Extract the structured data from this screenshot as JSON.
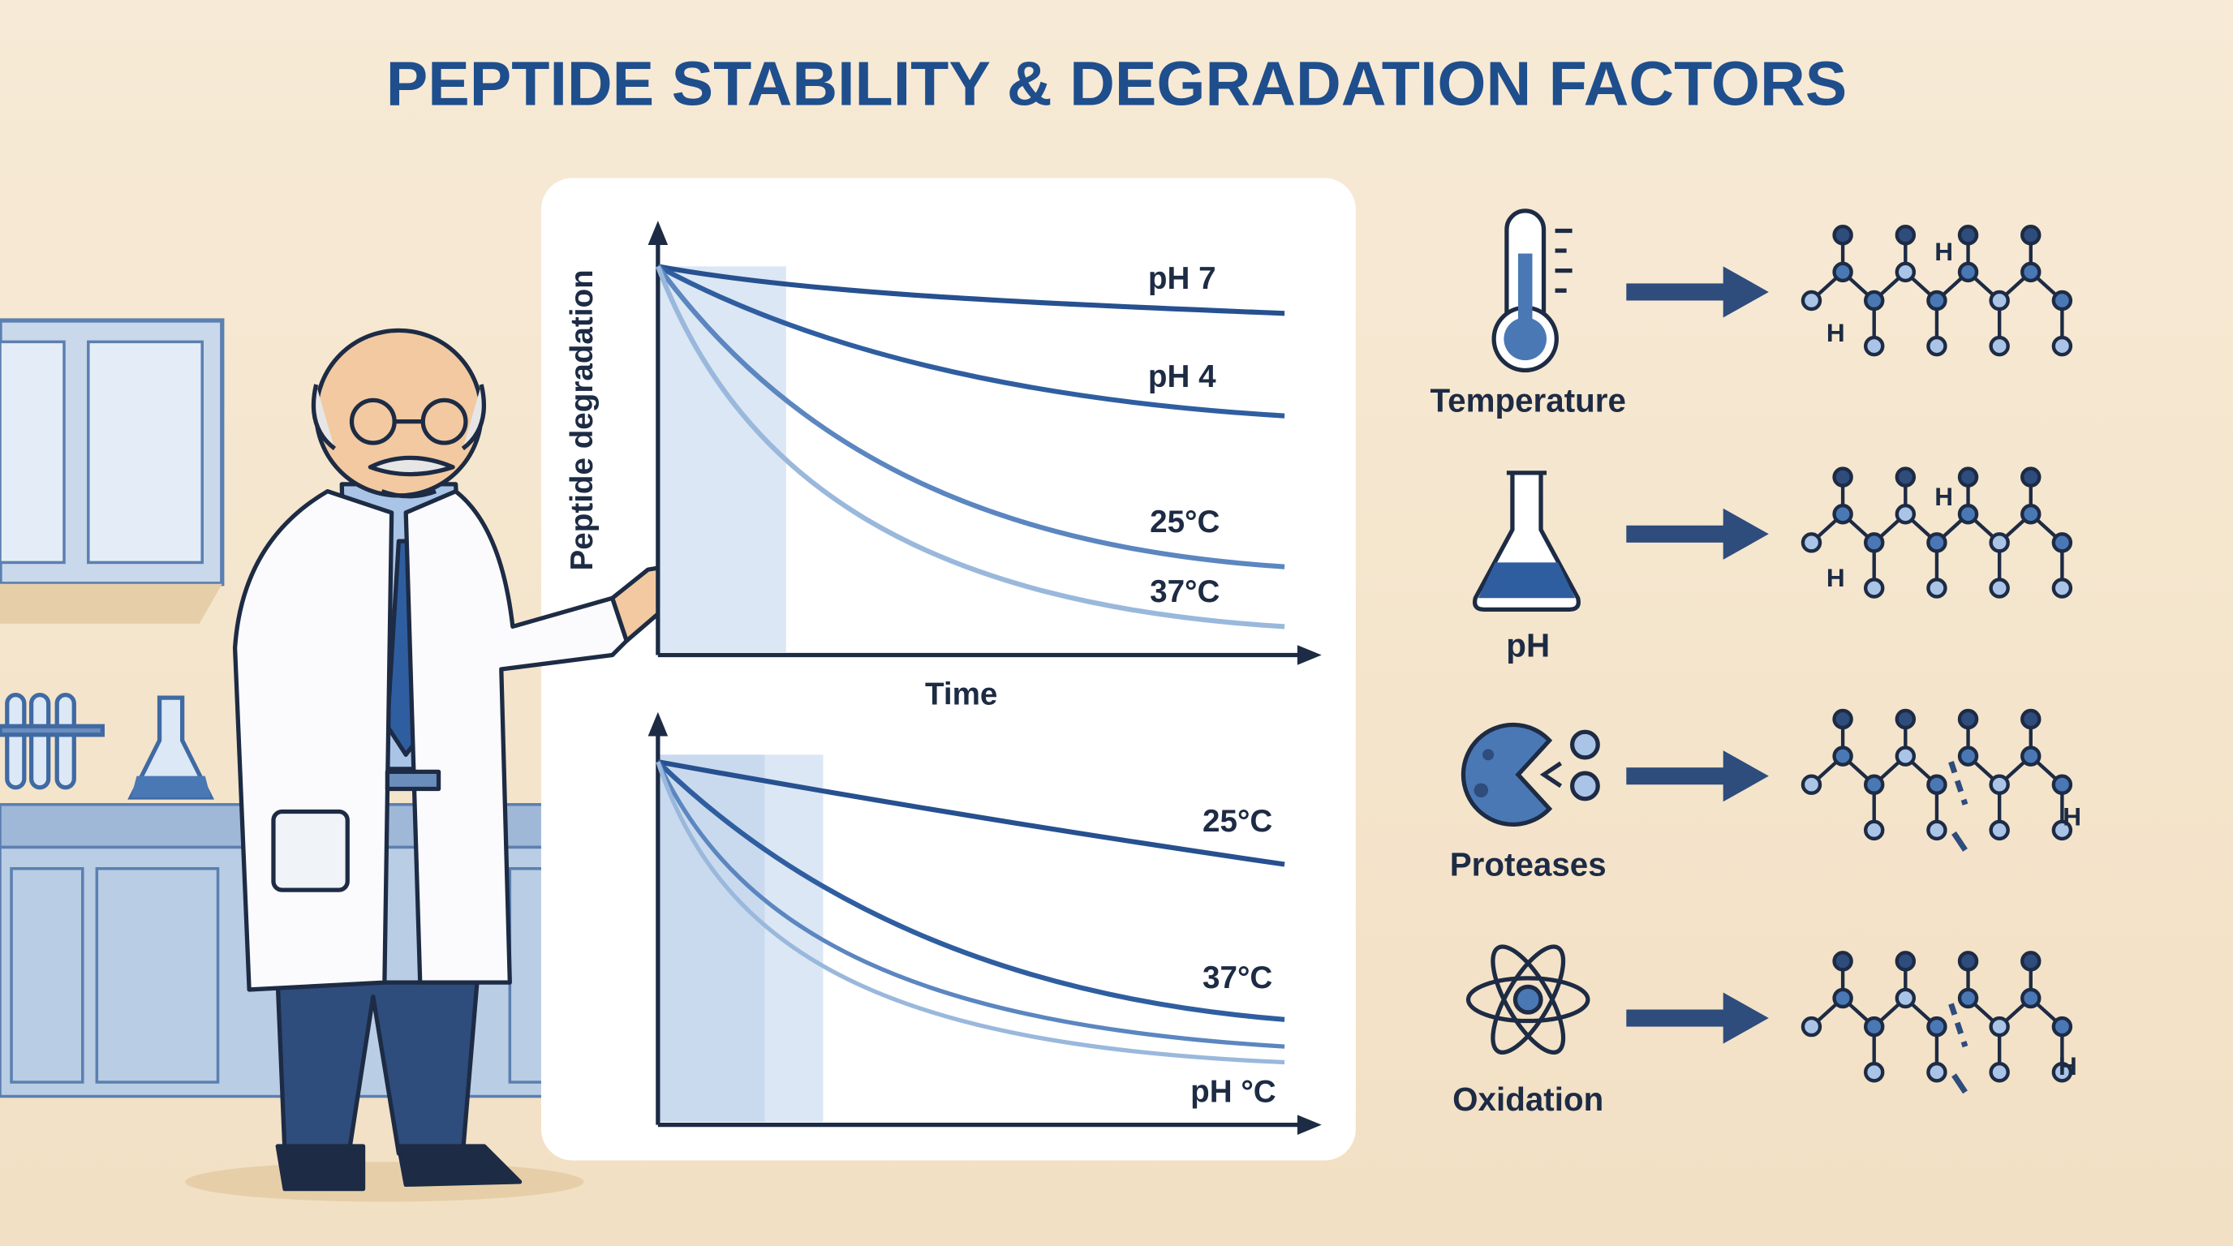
{
  "title": "PEPTIDE STABILITY & DEGRADATION FACTORS",
  "top_chart": {
    "y_label": "Peptide degradation",
    "x_label": "Time",
    "curve_labels": [
      "pH 7",
      "pH 4",
      "25°C",
      "37°C"
    ]
  },
  "bottom_chart": {
    "curve_labels": [
      "25°C",
      "37°C",
      "pH °C"
    ]
  },
  "factors": [
    {
      "label": "Temperature",
      "molecule_labels": [
        "H",
        "H"
      ]
    },
    {
      "label": "pH",
      "molecule_labels": [
        "H",
        "H"
      ]
    },
    {
      "label": "Proteases",
      "molecule_labels": [
        "H"
      ]
    },
    {
      "label": "Oxidation",
      "molecule_labels": [
        "H"
      ]
    }
  ]
}
